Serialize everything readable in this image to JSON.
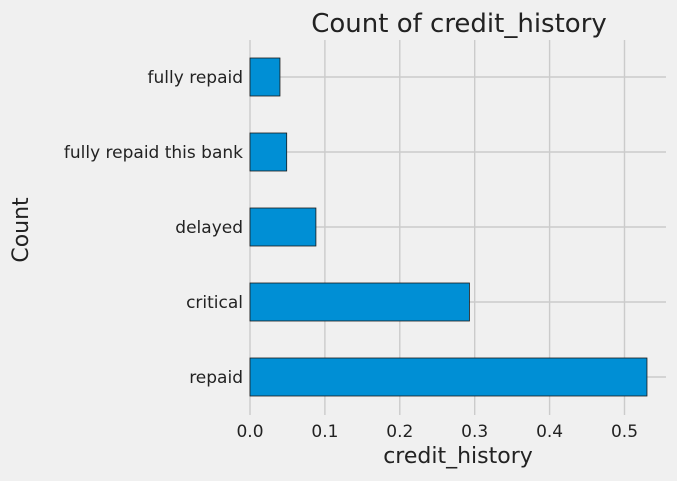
{
  "chart_data": {
    "type": "bar",
    "orientation": "horizontal",
    "title": "Count of credit_history",
    "xlabel": "credit_history",
    "ylabel": "Count",
    "categories": [
      "repaid",
      "critical",
      "delayed",
      "fully repaid this bank",
      "fully repaid"
    ],
    "values": [
      0.53,
      0.293,
      0.088,
      0.049,
      0.04
    ],
    "xlim": [
      0,
      0.55
    ],
    "xticks": [
      "0.0",
      "0.1",
      "0.2",
      "0.3",
      "0.4",
      "0.5"
    ],
    "bar_color": "#008fd5",
    "edge_color": "#1a1a1a",
    "background": "#f0f0f0",
    "grid": true,
    "legend": "none"
  }
}
